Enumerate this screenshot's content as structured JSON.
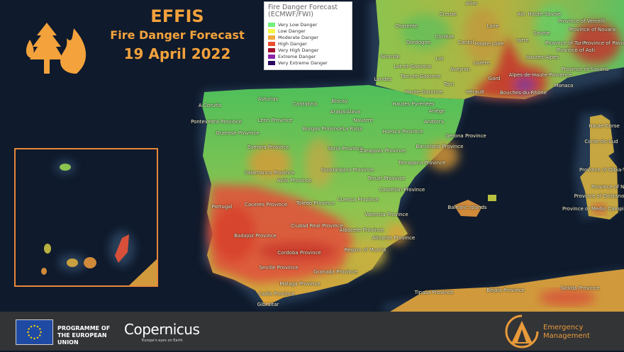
{
  "header": {
    "title": "EFFIS",
    "subtitle": "Fire Danger Forecast",
    "date": "19 April 2022",
    "logo_icon": "forest-fire-icon"
  },
  "legend": {
    "title": "Fire Danger Forecast (ECMWF/FWI)",
    "items": [
      {
        "label": "Very Low Danger",
        "color": "#6ef07a"
      },
      {
        "label": "Low Danger",
        "color": "#f5f542"
      },
      {
        "label": "Moderate Danger",
        "color": "#f2a93b"
      },
      {
        "label": "High Danger",
        "color": "#e8502e"
      },
      {
        "label": "Very High Danger",
        "color": "#a3112c"
      },
      {
        "label": "Extreme Danger",
        "color": "#8e24aa"
      },
      {
        "label": "Very Extreme Danger",
        "color": "#2a0a5e"
      }
    ]
  },
  "map": {
    "labels": [
      "A Coruña",
      "Asturias",
      "Cantabria",
      "Biscay",
      "Araba/Álava",
      "Navarre",
      "Hautes-Pyrénées",
      "Ariège",
      "Andorra",
      "Pontevedra Province",
      "León Province",
      "Ourense Province",
      "Burgos Province",
      "La Rioja",
      "Huesca Province",
      "Barcelona Province",
      "Zamora Province",
      "Soria Province",
      "Zaragoza Province",
      "Tarragona Province",
      "Salamanca Province",
      "Guadalajara Province",
      "Teruel Province",
      "Avila Province",
      "Castellon Province",
      "Portugal",
      "Caceres Province",
      "Toledo Province",
      "Cuenca Province",
      "Valencia Province",
      "Ciudad Real Province",
      "Albacete Province",
      "Badajoz Province",
      "Alicante Province",
      "Cordoba Province",
      "Region of Murcia",
      "Seville Province",
      "Granada Province",
      "Malaga Province",
      "Cadiz Province",
      "Gibraltar",
      "Allier",
      "Creuse",
      "Ain",
      "Haute-Savoie",
      "Charente",
      "Province of Vercelli",
      "Corrèze",
      "Loire",
      "Province of Novara",
      "Savoie",
      "Dordogne",
      "Cantal",
      "Haute-Loire",
      "Isère",
      "Province of Turin",
      "Province of Pavia",
      "Province of Asti",
      "Gironde",
      "Lot",
      "Hautes-Alpes",
      "Lot-et-Garonne",
      "Lozère",
      "Aveyron",
      "Province of Savona",
      "Landes",
      "Tarn-et-Garonne",
      "Gard",
      "Alpes-de-Haute-Provence",
      "Tarn",
      "Monaco",
      "Haute-Garonne",
      "Hérault",
      "Bouches-du-Rhône",
      "Gerona Province",
      "Haute-Corse",
      "Corse-du-Sud",
      "Province of Olbia-Tempio",
      "Province of Nuoro",
      "Province of Oristano",
      "Province of Medio Campidano",
      "Balearic Islands",
      "Bejaia Province",
      "Tipasa Province",
      "Skikda Province"
    ]
  },
  "footer": {
    "programme": "PROGRAMME OF THE EUROPEAN UNION",
    "copernicus": "Copernicus",
    "copernicus_tagline": "Europe's eyes on Earth",
    "emergency": "Emergency Management"
  }
}
